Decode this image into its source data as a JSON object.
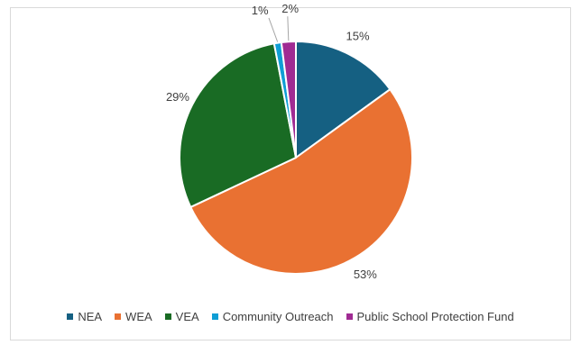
{
  "chart_data": {
    "type": "pie",
    "title": "",
    "slices": [
      {
        "label": "NEA",
        "value": 15,
        "data_label": "15%",
        "color": "#156082"
      },
      {
        "label": "WEA",
        "value": 53,
        "data_label": "53%",
        "color": "#E97132"
      },
      {
        "label": "VEA",
        "value": 29,
        "data_label": "29%",
        "color": "#196B24"
      },
      {
        "label": "Community Outreach",
        "value": 1,
        "data_label": "1%",
        "color": "#0F9ED5"
      },
      {
        "label": "Public School Protection Fund",
        "value": 2,
        "data_label": "2%",
        "color": "#A02B93"
      }
    ],
    "legend_position": "bottom"
  }
}
